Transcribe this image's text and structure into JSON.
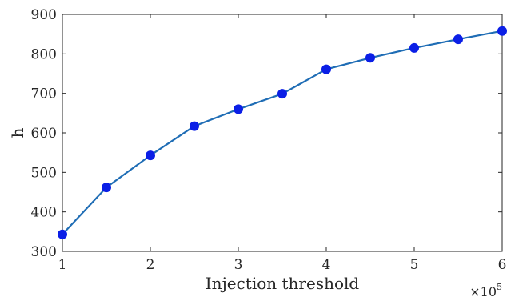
{
  "chart_data": {
    "type": "line",
    "title": "",
    "xlabel": "Injection threshold",
    "ylabel": "h",
    "x_multiplier_label": {
      "base": "×10",
      "exponent": "5"
    },
    "x": [
      1,
      1.5,
      2,
      2.5,
      3,
      3.5,
      4,
      4.5,
      5,
      5.5,
      6
    ],
    "xlim": [
      1,
      6
    ],
    "ylim": [
      300,
      900
    ],
    "xticks": [
      1,
      2,
      3,
      4,
      5,
      6
    ],
    "yticks": [
      300,
      400,
      500,
      600,
      700,
      800,
      900
    ],
    "grid": false,
    "series": [
      {
        "values": [
          343,
          462,
          543,
          617,
          660,
          699,
          761,
          790,
          815,
          837,
          858
        ],
        "line_color": "#1f6db5",
        "marker_color": "#0b1fe6"
      }
    ]
  }
}
